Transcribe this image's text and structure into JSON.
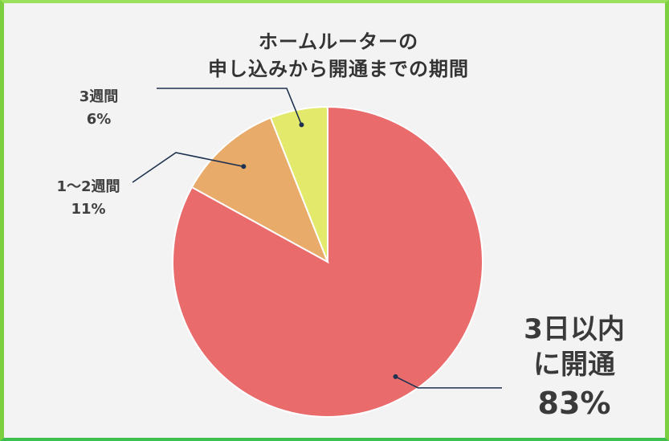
{
  "chart_data": {
    "type": "pie",
    "title_lines": [
      "ホームルーターの",
      "申し込みから開通までの期間"
    ],
    "start_angle_deg": 0,
    "direction": "clockwise",
    "colors": {
      "slice_1": "#e96b6c",
      "slice_2": "#e8ab6a",
      "slice_3": "#e3e96a",
      "leader": "#1f3350"
    },
    "slices": [
      {
        "label_lines": [
          "3日以内",
          "に開通"
        ],
        "value_label": "83%",
        "value": 83,
        "color": "#e96b6c"
      },
      {
        "label_lines": [
          "1～2週間"
        ],
        "value_label": "11%",
        "value": 11,
        "color": "#e8ab6a"
      },
      {
        "label_lines": [
          "3週間"
        ],
        "value_label": "6%",
        "value": 6,
        "color": "#e3e96a"
      }
    ]
  }
}
